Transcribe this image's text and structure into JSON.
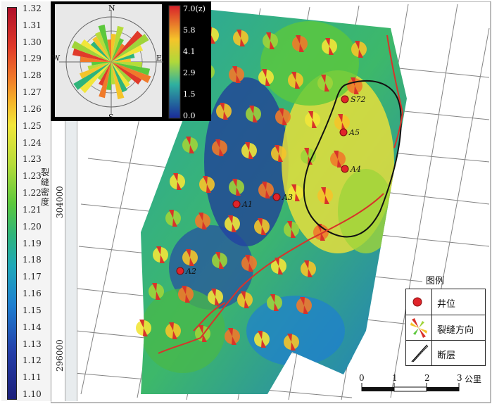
{
  "colorbar": {
    "ticks": [
      "1.32",
      "1.31",
      "1.30",
      "1.29",
      "1.28",
      "1.27",
      "1.26",
      "1.25",
      "1.24",
      "1.23",
      "1.23",
      "1.22",
      "1.21",
      "1.20",
      "1.19",
      "1.18",
      "1.17",
      "1.16",
      "1.15",
      "1.14",
      "1.13",
      "1.12",
      "1.11",
      "1.10"
    ],
    "title": "裂缝密度"
  },
  "rose": {
    "north": "N",
    "south": "S",
    "east": "E",
    "west": "W",
    "scale_ticks": [
      "7.0(z)",
      "5.8",
      "4.1",
      "2.9",
      "1.5",
      "0.0"
    ]
  },
  "coords": {
    "y_upper": "304000",
    "y_lower": "296000"
  },
  "wells": [
    {
      "label": "S72"
    },
    {
      "label": "A5"
    },
    {
      "label": "A4"
    },
    {
      "label": "A3"
    },
    {
      "label": "A1"
    },
    {
      "label": "A2"
    }
  ],
  "legend": {
    "title": "图例",
    "items": [
      {
        "icon": "well-dot-icon",
        "label": "井位"
      },
      {
        "icon": "fracture-direction-icon",
        "label": "裂缝方向"
      },
      {
        "icon": "fault-icon",
        "label": "断层"
      }
    ]
  },
  "scale_bar": {
    "ticks": [
      "0",
      "1",
      "2",
      "3"
    ],
    "unit": "公里"
  },
  "colors": {
    "well": "#e0242a",
    "fault": "#d8332a",
    "boundary": "#111111"
  }
}
